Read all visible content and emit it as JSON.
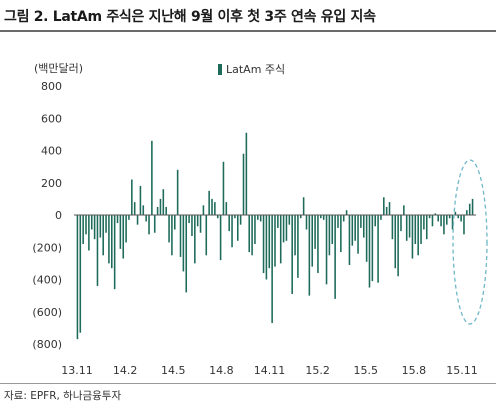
{
  "title": "그림 2. LatAm 주식은 지난해 9월 이후 첫 3주 연속 유입 지속",
  "source": "자료: EPFR, 하나금융투자",
  "chart_data": {
    "type": "bar",
    "unit_label": "(백만달러)",
    "ylim": [
      -800,
      800
    ],
    "y_ticks": [
      800,
      600,
      400,
      200,
      0,
      -200,
      -400,
      -600,
      -800
    ],
    "y_tick_labels": [
      "800",
      "600",
      "400",
      "200",
      "0",
      "(200)",
      "(400)",
      "(600)",
      "(800)"
    ],
    "x_tick_labels": [
      "13.11",
      "14.2",
      "14.5",
      "14.8",
      "14.11",
      "15.2",
      "15.5",
      "15.8",
      "15.11"
    ],
    "grid": false,
    "legend_position": "top-center",
    "bar_color": "#1e6b5b",
    "highlight_ellipse_color": "#6fb8c9",
    "series": [
      {
        "name": "LatAm 주식",
        "values": [
          -770,
          -730,
          -180,
          -120,
          -220,
          -90,
          -150,
          -440,
          -140,
          -250,
          -110,
          -300,
          -330,
          -460,
          -50,
          -210,
          -270,
          -170,
          -30,
          220,
          80,
          -60,
          180,
          60,
          -40,
          -120,
          460,
          -110,
          50,
          100,
          160,
          50,
          -170,
          -250,
          -90,
          280,
          -260,
          -350,
          -480,
          -50,
          -130,
          -300,
          -70,
          -110,
          60,
          -250,
          150,
          100,
          80,
          -20,
          -280,
          330,
          80,
          -100,
          -200,
          -20,
          -160,
          -60,
          380,
          510,
          -230,
          -250,
          -180,
          -30,
          -40,
          -360,
          -400,
          -330,
          -670,
          -320,
          -80,
          -300,
          -170,
          -160,
          -60,
          -490,
          -250,
          -390,
          -20,
          110,
          -90,
          -500,
          -320,
          -210,
          -360,
          -20,
          -30,
          -430,
          -250,
          -180,
          -520,
          -80,
          -230,
          -40,
          30,
          -310,
          -190,
          -160,
          -240,
          -80,
          -140,
          -290,
          -450,
          -410,
          -70,
          -420,
          -30,
          110,
          50,
          80,
          -150,
          -330,
          -380,
          -100,
          60,
          -160,
          -140,
          -270,
          -180,
          -250,
          -180,
          -90,
          -150,
          -20,
          -70,
          10,
          -40,
          -70,
          -120,
          -60,
          -20,
          -90,
          20,
          -20,
          -40,
          -120,
          30,
          70,
          100
        ]
      }
    ]
  }
}
